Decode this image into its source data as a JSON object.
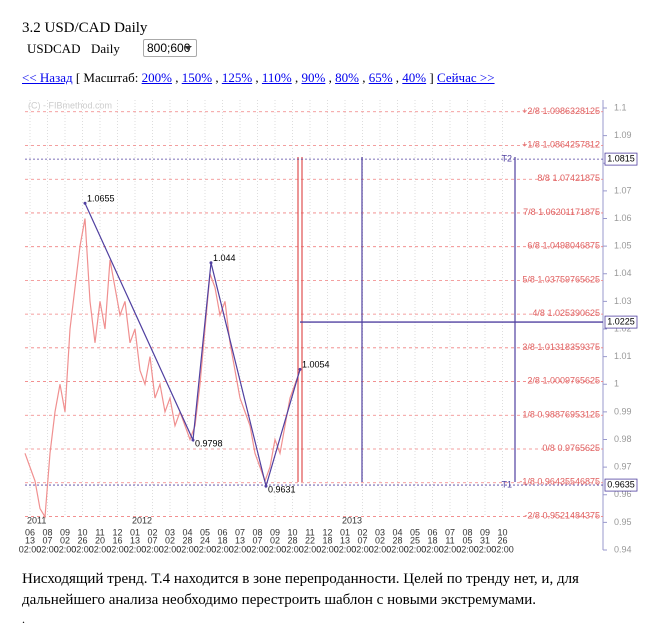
{
  "header": {
    "title": "3.2 USD/CAD Daily",
    "symbol": "USDCAD",
    "timeframe": "Daily",
    "size_select": "800;600"
  },
  "nav": {
    "back": "<< Назад",
    "scale_label": "[ Масштаб:",
    "scales": [
      "200%",
      "150%",
      "125%",
      "110%",
      "90%",
      "80%",
      "65%",
      "40%"
    ],
    "separator": ",",
    "scale_end": "]",
    "now": "Сейчас >>"
  },
  "chart": {
    "watermark": "(C) - FIBmethod.com",
    "ylim": [
      0.94,
      1.1
    ],
    "yticks": [
      1.1,
      1.09,
      1.08,
      1.07,
      1.06,
      1.05,
      1.04,
      1.03,
      1.02,
      1.01,
      1,
      0.99,
      0.98,
      0.97,
      0.96,
      0.95,
      0.94
    ],
    "fib_levels": [
      {
        "label": "+2/8",
        "value": 1.0986328125
      },
      {
        "label": "+1/8",
        "value": 1.0864257812
      },
      {
        "label": "8/8",
        "value": 1.07421875
      },
      {
        "label": "7/8",
        "value": 1.06201171875
      },
      {
        "label": "6/8",
        "value": 1.0498046875
      },
      {
        "label": "5/8",
        "value": 1.03759765625
      },
      {
        "label": "4/8",
        "value": 1.025390625
      },
      {
        "label": "3/8",
        "value": 1.01318359375
      },
      {
        "label": "2/8",
        "value": 1.0009765625
      },
      {
        "label": "1/8",
        "value": 0.98876953125
      },
      {
        "label": "0/8",
        "value": 0.9765625
      },
      {
        "label": "-1/8",
        "value": 0.96435546875
      },
      {
        "label": "-2/8",
        "value": 0.9521484375
      }
    ],
    "targets": [
      {
        "label": "T2",
        "value": 1.0815
      },
      {
        "label": "T1",
        "value": 0.9635
      }
    ],
    "level_line": 1.0225,
    "pivots": [
      1.0655,
      0.9798,
      1.044,
      0.9631,
      1.0054
    ],
    "price": [
      0.975,
      0.97,
      0.965,
      0.955,
      0.952,
      0.975,
      0.99,
      1.0,
      0.99,
      1.02,
      1.035,
      1.05,
      1.06,
      1.03,
      1.015,
      1.03,
      1.02,
      1.045,
      1.035,
      1.025,
      1.03,
      1.015,
      1.02,
      1.005,
      1.0,
      1.01,
      0.995,
      1.0,
      0.99,
      0.995,
      0.985,
      0.99,
      0.985,
      0.98,
      0.985,
      1.0,
      1.02,
      1.04,
      1.035,
      1.025,
      1.03,
      1.015,
      1.005,
      0.995,
      0.99,
      0.985,
      0.975,
      0.97,
      0.965,
      0.97,
      0.98,
      0.975,
      0.985,
      0.995,
      1.0,
      1.005
    ],
    "years": [
      "2011",
      "2012",
      "2013"
    ],
    "months": [
      "06",
      "08",
      "09",
      "10",
      "11",
      "12",
      "01",
      "02",
      "03",
      "04",
      "05",
      "06",
      "07",
      "08",
      "09",
      "10",
      "11",
      "12",
      "01",
      "02",
      "03",
      "04",
      "05",
      "06",
      "07",
      "08",
      "09",
      "10"
    ],
    "days": [
      "13",
      "07",
      "02",
      "26",
      "20",
      "16",
      "13",
      "07",
      "02",
      "28",
      "24",
      "18",
      "13",
      "07",
      "02",
      "28",
      "22",
      "18",
      "13",
      "07",
      "02",
      "28",
      "25",
      "18",
      "11",
      "05",
      "31",
      "26"
    ],
    "times": [
      "02:00",
      "02:00",
      "02:00",
      "02:00",
      "02:00",
      "02:00",
      "02:00",
      "02:00",
      "02:00",
      "02:00",
      "02:00",
      "02:00",
      "02:00",
      "02:00",
      "02:00",
      "02:00",
      "02:00",
      "02:00",
      "02:00",
      "02:00",
      "02:00",
      "02:00",
      "02:00",
      "02:00",
      "02:00",
      "02:00",
      "02:00",
      "02:00"
    ]
  },
  "description": "Нисходящий тренд. Т.4 находится в зоне перепроданности. Целей по тренду нет, и, для дальнейшего анализа необходимо перестроить шаблон с новыми экстремумами.",
  "footer_mark": "."
}
